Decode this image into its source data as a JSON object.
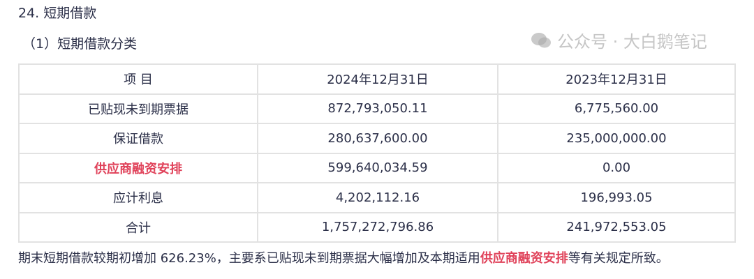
{
  "section_title": "24. 短期借款",
  "subsection_title": "（1）短期借款分类",
  "table": {
    "headers": [
      "项 目",
      "2024年12月31日",
      "2023年12月31日"
    ],
    "rows": [
      {
        "item": "已贴现未到期票据",
        "y2024": "872,793,050.11",
        "y2023": "6,775,560.00",
        "highlight": false
      },
      {
        "item": "保证借款",
        "y2024": "280,637,600.00",
        "y2023": "235,000,000.00",
        "highlight": false
      },
      {
        "item": "供应商融资安排",
        "y2024": "599,640,034.59",
        "y2023": "0.00",
        "highlight": true
      },
      {
        "item": "应计利息",
        "y2024": "4,202,112.16",
        "y2023": "196,993.05",
        "highlight": false
      },
      {
        "item": "合计",
        "y2024": "1,757,272,796.86",
        "y2023": "241,972,553.05",
        "highlight": false
      }
    ]
  },
  "note": {
    "before": "期末短期借款较期初增加 626.23%，主要系已贴现未到期票据大幅增加及本期适用",
    "highlight": "供应商融资安排",
    "after": "等有关规定所致。"
  },
  "watermark": {
    "text": "公众号 · 大白鹅笔记",
    "icon": "wechat-icon"
  },
  "colors": {
    "text": "#2b2f48",
    "highlight": "#e0425a",
    "border": "#e2e2e2"
  }
}
